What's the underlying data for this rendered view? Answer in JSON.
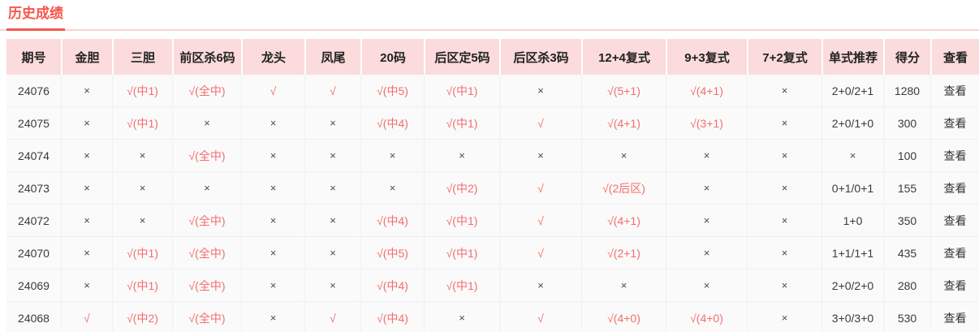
{
  "title": "历史成绩",
  "colors": {
    "accent": "#f6564b",
    "header_background": "#fbdbdb",
    "hit_text": "#f56c6c",
    "body_text": "#3a3a3a"
  },
  "table": {
    "columns": [
      "期号",
      "金胆",
      "三胆",
      "前区杀6码",
      "龙头",
      "凤尾",
      "20码",
      "后区定5码",
      "后区杀3码",
      "12+4复式",
      "9+3复式",
      "7+2复式",
      "单式推荐",
      "得分",
      "查看"
    ],
    "view_label": "查看",
    "rows": [
      [
        "24076",
        "×",
        "√(中1)",
        "√(全中)",
        "√",
        "√",
        "√(中5)",
        "√(中1)",
        "×",
        "√(5+1)",
        "√(4+1)",
        "×",
        "2+0/2+1",
        "1280",
        "查看"
      ],
      [
        "24075",
        "×",
        "√(中1)",
        "×",
        "×",
        "×",
        "√(中4)",
        "√(中1)",
        "√",
        "√(4+1)",
        "√(3+1)",
        "×",
        "2+0/1+0",
        "300",
        "查看"
      ],
      [
        "24074",
        "×",
        "×",
        "√(全中)",
        "×",
        "×",
        "×",
        "×",
        "×",
        "×",
        "×",
        "×",
        "×",
        "100",
        "查看"
      ],
      [
        "24073",
        "×",
        "×",
        "×",
        "×",
        "×",
        "×",
        "√(中2)",
        "√",
        "√(2后区)",
        "×",
        "×",
        "0+1/0+1",
        "155",
        "查看"
      ],
      [
        "24072",
        "×",
        "×",
        "√(全中)",
        "×",
        "×",
        "√(中4)",
        "√(中1)",
        "√",
        "√(4+1)",
        "×",
        "×",
        "1+0",
        "350",
        "查看"
      ],
      [
        "24070",
        "×",
        "√(中1)",
        "√(全中)",
        "×",
        "×",
        "√(中5)",
        "√(中1)",
        "√",
        "√(2+1)",
        "×",
        "×",
        "1+1/1+1",
        "435",
        "查看"
      ],
      [
        "24069",
        "×",
        "√(中1)",
        "√(全中)",
        "×",
        "×",
        "√(中4)",
        "√(中1)",
        "×",
        "×",
        "×",
        "×",
        "2+0/2+0",
        "280",
        "查看"
      ],
      [
        "24068",
        "√",
        "√(中2)",
        "√(全中)",
        "×",
        "√",
        "√(中4)",
        "×",
        "√",
        "√(4+0)",
        "√(4+0)",
        "×",
        "3+0/3+0",
        "530",
        "查看"
      ]
    ]
  }
}
